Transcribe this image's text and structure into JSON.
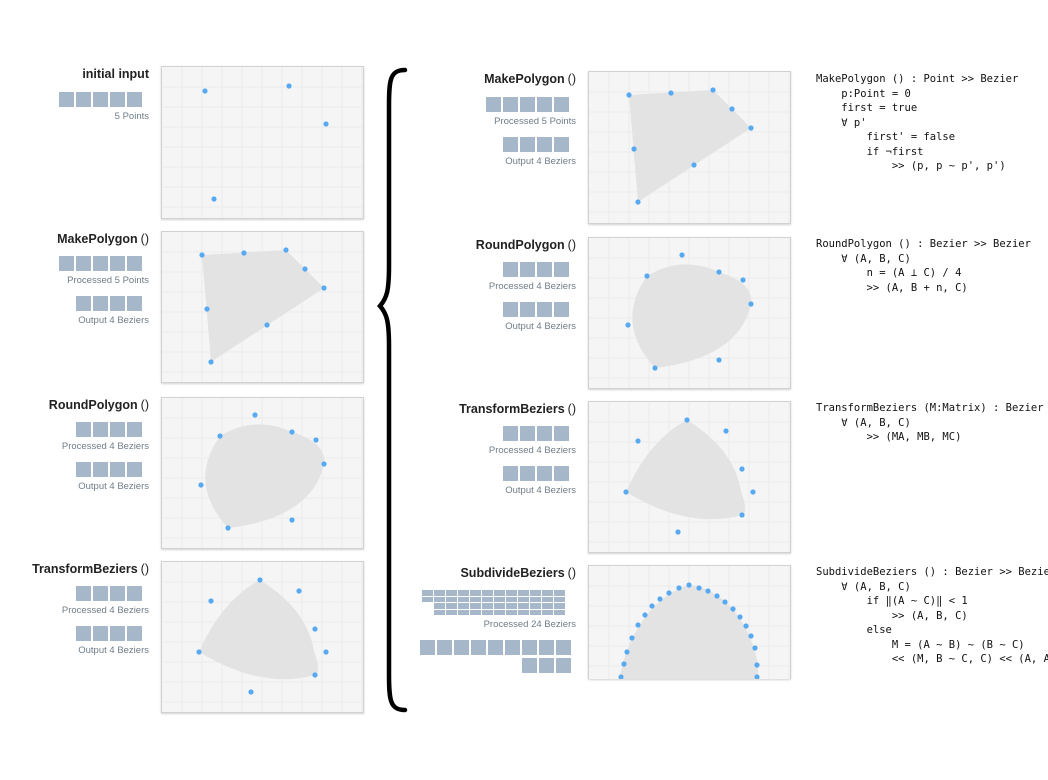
{
  "colors": {
    "point": "#57aaf2",
    "shape": "#e3e3e3",
    "block": "#a5b7c8",
    "panel": "#f5f5f5",
    "grid": "#ececec",
    "muted": "#6f7c88"
  },
  "left": [
    {
      "title": "initial input",
      "paren": "",
      "counts": [
        "5 Points"
      ]
    },
    {
      "title": "MakePolygon",
      "paren": "()",
      "counts": [
        "Processed 5 Points",
        "Output 4 Beziers"
      ]
    },
    {
      "title": "RoundPolygon",
      "paren": "()",
      "counts": [
        "Processed 4 Beziers",
        "Output 4 Beziers"
      ]
    },
    {
      "title": "TransformBeziers",
      "paren": "()",
      "counts": [
        "Processed 4 Beziers",
        "Output 4 Beziers"
      ]
    }
  ],
  "right": [
    {
      "title": "MakePolygon",
      "paren": "()",
      "counts": [
        "Processed 5 Points",
        "Output 4 Beziers"
      ]
    },
    {
      "title": "RoundPolygon",
      "paren": "()",
      "counts": [
        "Processed 4 Beziers",
        "Output 4 Beziers"
      ]
    },
    {
      "title": "TransformBeziers",
      "paren": "()",
      "counts": [
        "Processed 4 Beziers",
        "Output 4 Beziers"
      ]
    },
    {
      "title": "SubdivideBeziers",
      "paren": "()",
      "counts": [
        "Processed 24 Beziers"
      ]
    }
  ],
  "code": [
    "MakePolygon () : Point >> Bezier\n    p:Point = 0\n    first = true\n    ∀ p'\n        first' = false\n        if ¬first\n            >> (p, p ~ p', p')",
    "RoundPolygon () : Bezier >> Bezier\n    ∀ (A, B, C)\n        n = (A ⊥ C) / 4\n        >> (A, B + n, C)",
    "TransformBeziers (M:Matrix) : Bezier >> Bezier\n    ∀ (A, B, C)\n        >> (MA, MB, MC)",
    "SubdivideBeziers () : Bezier >> Bezier\n    ∀ (A, B, C)\n        if ‖(A ~ C)‖ < 1\n            >> (A, B, C)\n        else\n            M = (A ~ B) ~ (B ~ C)\n            << (M, B ~ C, C) << (A, A ~ B, M)"
  ]
}
